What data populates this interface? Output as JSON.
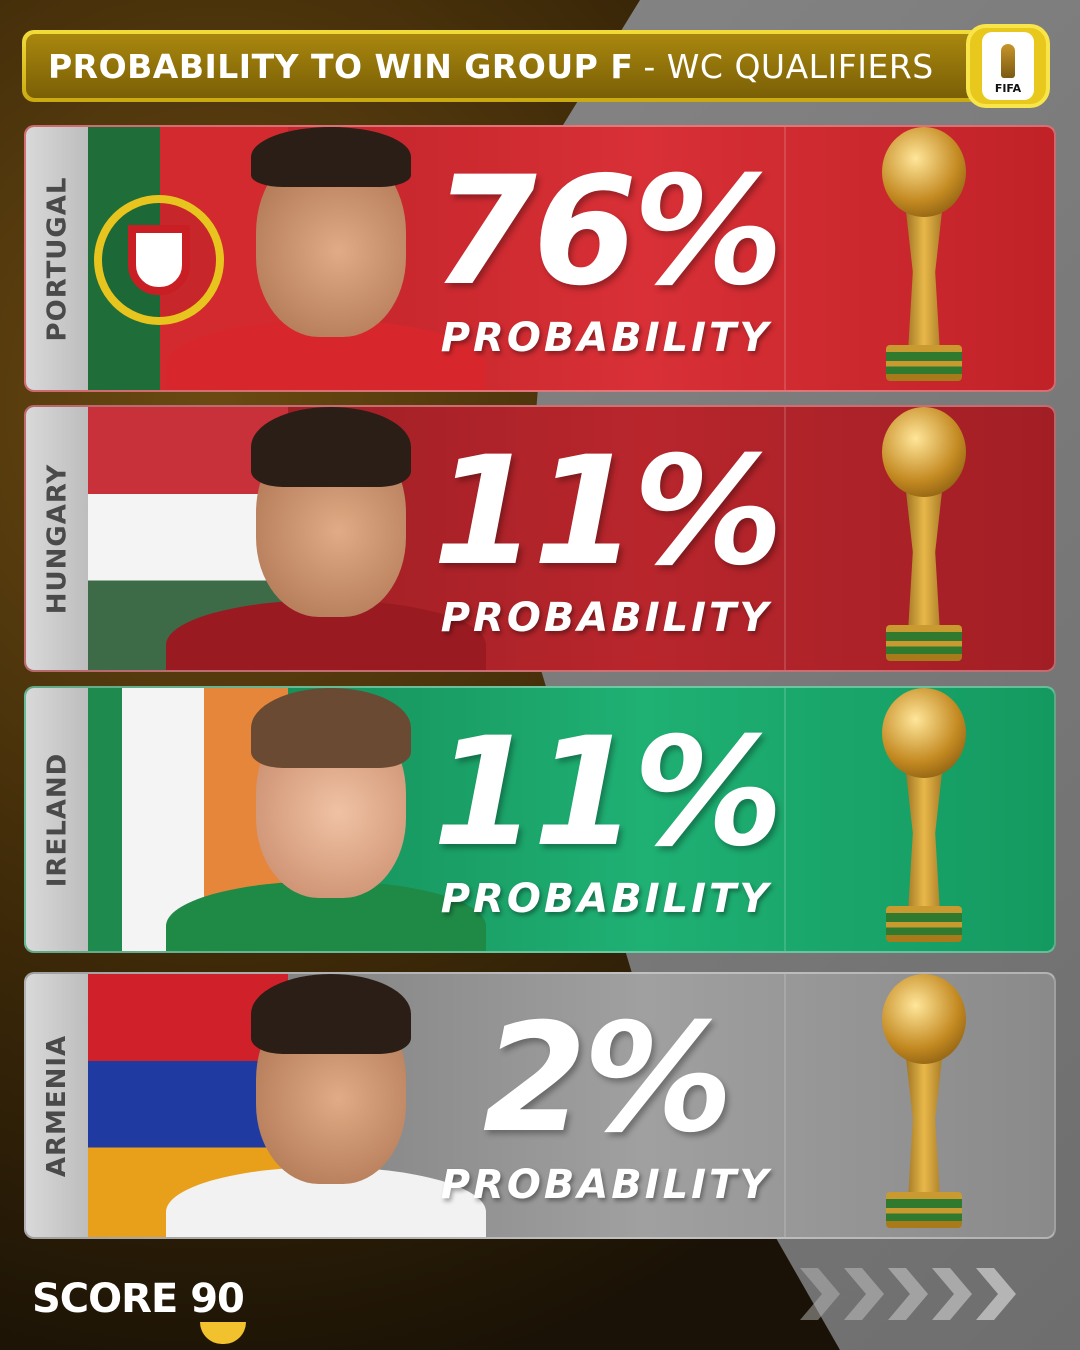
{
  "header": {
    "title_bold": "PROBABILITY TO WIN GROUP F",
    "title_thin": "- WC QUALIFIERS",
    "logo_text": "FIFA"
  },
  "teams": [
    {
      "name": "PORTUGAL",
      "probability": "76%",
      "label": "PROBABILITY",
      "card_color": "#c8262b"
    },
    {
      "name": "HUNGARY",
      "probability": "11%",
      "label": "PROBABILITY",
      "card_color": "#a81f27"
    },
    {
      "name": "IRELAND",
      "probability": "11%",
      "label": "PROBABILITY",
      "card_color": "#1a9a62"
    },
    {
      "name": "ARMENIA",
      "probability": "2%",
      "label": "PROBABILITY",
      "card_color": "#8c8c8c"
    }
  ],
  "footer": {
    "brand": "SCORE 90"
  }
}
